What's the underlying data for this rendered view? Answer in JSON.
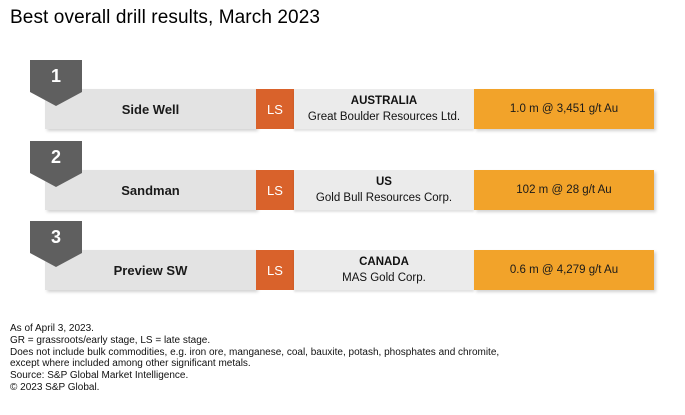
{
  "title": "Best overall drill results, March 2023",
  "rows": [
    {
      "rank": "1",
      "project": "Side Well",
      "stage": "LS",
      "country": "AUSTRALIA",
      "company": "Great Boulder Resources Ltd.",
      "result": "1.0 m @ 3,451 g/t Au"
    },
    {
      "rank": "2",
      "project": "Sandman",
      "stage": "LS",
      "country": "US",
      "company": "Gold Bull Resources Corp.",
      "result": "102 m @ 28 g/t Au"
    },
    {
      "rank": "3",
      "project": "Preview SW",
      "stage": "LS",
      "country": "CANADA",
      "company": "MAS Gold Corp.",
      "result": "0.6 m @ 4,279 g/t Au"
    }
  ],
  "notes": [
    "As of April 3, 2023.",
    "GR = grassroots/early stage, LS = late stage.",
    "Does not include bulk commodities, e.g. iron ore, manganese, coal, bauxite, potash, phosphates and chromite,",
    "except where included among other significant metals.",
    "Source: S&P Global Market Intelligence.",
    "© 2023 S&P Global."
  ],
  "colors": {
    "badge": "#5f5f5f",
    "stage": "#d9622b",
    "result": "#f2a32a",
    "bar": "#e3e3e3"
  }
}
